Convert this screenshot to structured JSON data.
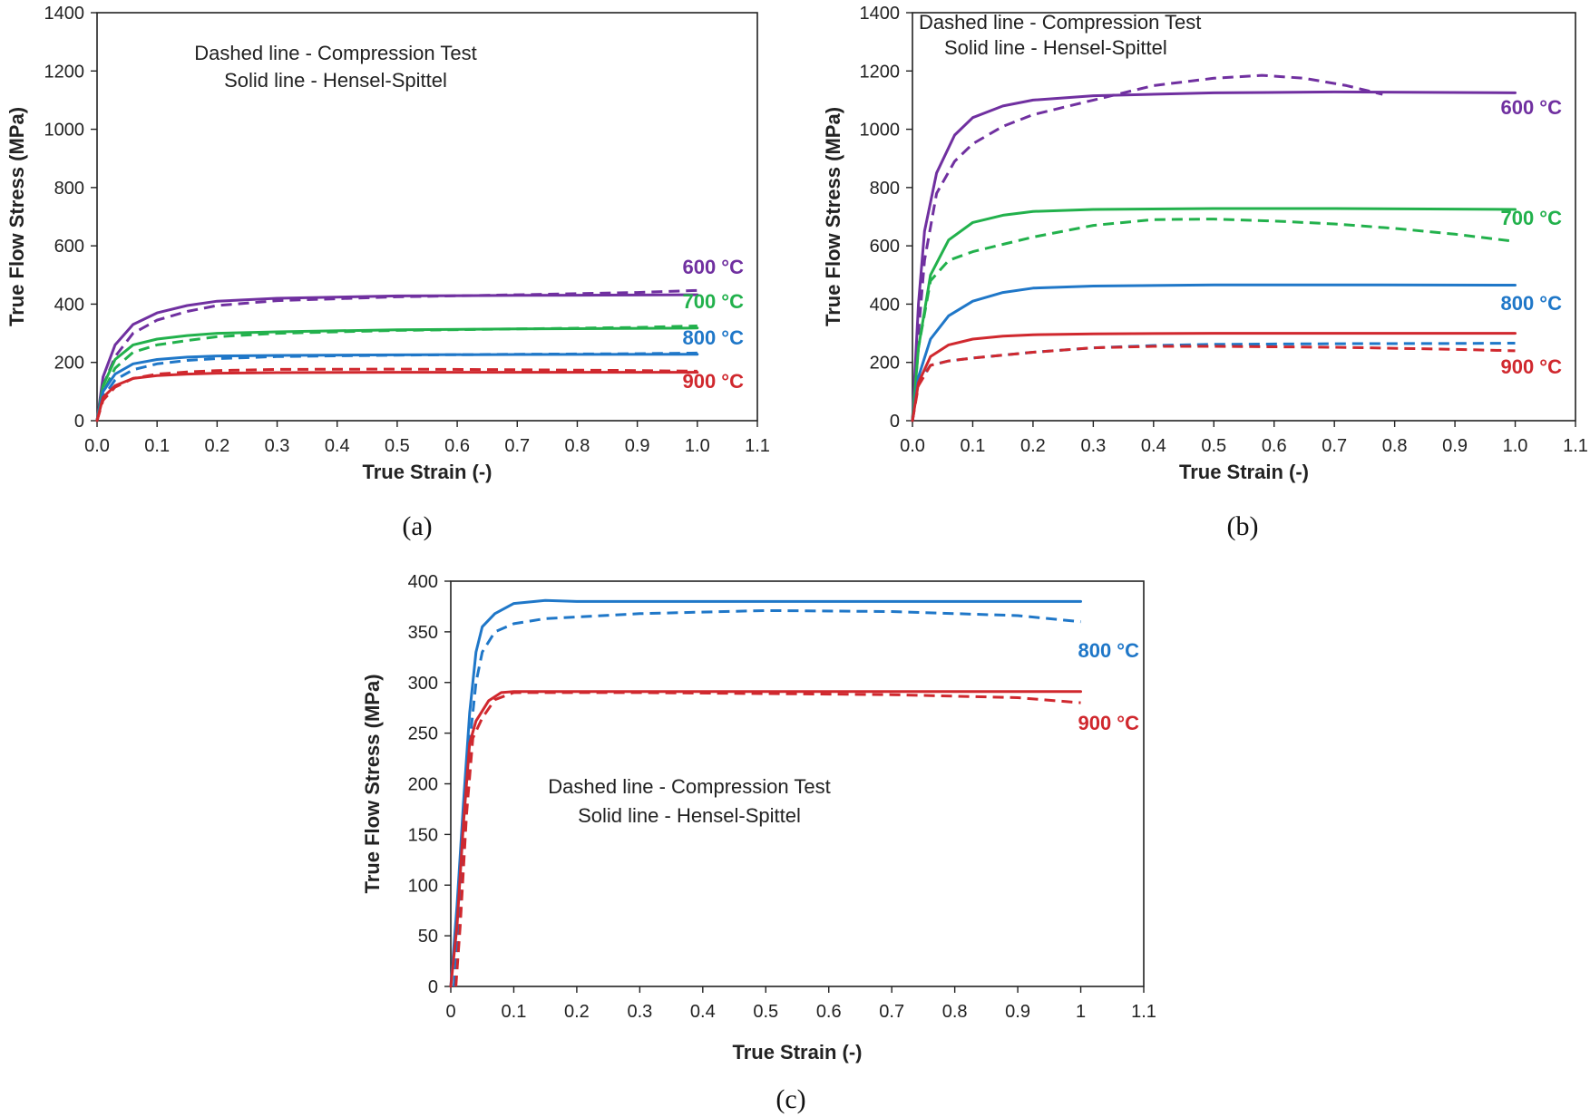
{
  "colors": {
    "600": "#7030A0",
    "700": "#22B14C",
    "800": "#1F77C8",
    "900": "#D0282E",
    "axis": "#222222"
  },
  "chart_data": [
    {
      "id": "a",
      "type": "line",
      "caption": "(a)",
      "xlabel": "True Strain (-)",
      "ylabel": "True Flow Stress (MPa)",
      "xlim": [
        0,
        1.1
      ],
      "ylim": [
        0,
        1400
      ],
      "xticks": [
        "0.0",
        "0.1",
        "0.2",
        "0.3",
        "0.4",
        "0.5",
        "0.6",
        "0.7",
        "0.8",
        "0.9",
        "1.0",
        "1.1"
      ],
      "yticks": [
        "0",
        "200",
        "400",
        "600",
        "800",
        "1000",
        "1200",
        "1400"
      ],
      "legend_notes": [
        "Dashed line - Compression Test",
        "Solid line - Hensel-Spittel"
      ],
      "series": [
        {
          "label": "600 °C",
          "temp": "600",
          "solid": [
            [
              0,
              0
            ],
            [
              0.01,
              150
            ],
            [
              0.03,
              260
            ],
            [
              0.06,
              330
            ],
            [
              0.1,
              370
            ],
            [
              0.15,
              395
            ],
            [
              0.2,
              410
            ],
            [
              0.3,
              420
            ],
            [
              0.5,
              428
            ],
            [
              0.7,
              430
            ],
            [
              1.0,
              432
            ]
          ],
          "dashed": [
            [
              0,
              0
            ],
            [
              0.01,
              120
            ],
            [
              0.03,
              220
            ],
            [
              0.06,
              300
            ],
            [
              0.1,
              345
            ],
            [
              0.15,
              375
            ],
            [
              0.2,
              395
            ],
            [
              0.3,
              412
            ],
            [
              0.5,
              425
            ],
            [
              0.7,
              432
            ],
            [
              0.9,
              440
            ],
            [
              1.0,
              447
            ]
          ]
        },
        {
          "label": "700 °C",
          "temp": "700",
          "solid": [
            [
              0,
              0
            ],
            [
              0.01,
              120
            ],
            [
              0.03,
              210
            ],
            [
              0.06,
              260
            ],
            [
              0.1,
              280
            ],
            [
              0.15,
              292
            ],
            [
              0.2,
              300
            ],
            [
              0.3,
              305
            ],
            [
              0.5,
              312
            ],
            [
              0.7,
              315
            ],
            [
              1.0,
              318
            ]
          ],
          "dashed": [
            [
              0,
              0
            ],
            [
              0.01,
              100
            ],
            [
              0.03,
              180
            ],
            [
              0.06,
              235
            ],
            [
              0.1,
              260
            ],
            [
              0.15,
              275
            ],
            [
              0.2,
              288
            ],
            [
              0.3,
              300
            ],
            [
              0.5,
              310
            ],
            [
              0.7,
              315
            ],
            [
              0.9,
              320
            ],
            [
              1.0,
              325
            ]
          ]
        },
        {
          "label": "800 °C",
          "temp": "800",
          "solid": [
            [
              0,
              0
            ],
            [
              0.01,
              100
            ],
            [
              0.03,
              160
            ],
            [
              0.06,
              195
            ],
            [
              0.1,
              210
            ],
            [
              0.15,
              218
            ],
            [
              0.2,
              222
            ],
            [
              0.3,
              224
            ],
            [
              0.5,
              226
            ],
            [
              0.7,
              227
            ],
            [
              1.0,
              228
            ]
          ],
          "dashed": [
            [
              0,
              0
            ],
            [
              0.01,
              80
            ],
            [
              0.03,
              140
            ],
            [
              0.06,
              175
            ],
            [
              0.1,
              195
            ],
            [
              0.15,
              207
            ],
            [
              0.2,
              213
            ],
            [
              0.3,
              220
            ],
            [
              0.5,
              225
            ],
            [
              0.7,
              228
            ],
            [
              0.9,
              230
            ],
            [
              1.0,
              232
            ]
          ]
        },
        {
          "label": "900 °C",
          "temp": "900",
          "solid": [
            [
              0,
              0
            ],
            [
              0.01,
              80
            ],
            [
              0.03,
              120
            ],
            [
              0.06,
              145
            ],
            [
              0.1,
              155
            ],
            [
              0.15,
              160
            ],
            [
              0.2,
              163
            ],
            [
              0.3,
              165
            ],
            [
              0.5,
              166
            ],
            [
              0.7,
              166
            ],
            [
              1.0,
              166
            ]
          ],
          "dashed": [
            [
              0,
              0
            ],
            [
              0.01,
              70
            ],
            [
              0.03,
              115
            ],
            [
              0.06,
              145
            ],
            [
              0.1,
              160
            ],
            [
              0.15,
              167
            ],
            [
              0.2,
              172
            ],
            [
              0.3,
              176
            ],
            [
              0.5,
              177
            ],
            [
              0.7,
              175
            ],
            [
              0.9,
              172
            ],
            [
              1.0,
              170
            ]
          ]
        }
      ]
    },
    {
      "id": "b",
      "type": "line",
      "caption": "(b)",
      "xlabel": "True Strain (-)",
      "ylabel": "True Flow Stress (MPa)",
      "xlim": [
        0,
        1.1
      ],
      "ylim": [
        0,
        1400
      ],
      "xticks": [
        "0.0",
        "0.1",
        "0.2",
        "0.3",
        "0.4",
        "0.5",
        "0.6",
        "0.7",
        "0.8",
        "0.9",
        "1.0",
        "1.1"
      ],
      "yticks": [
        "0",
        "200",
        "400",
        "600",
        "800",
        "1000",
        "1200",
        "1400"
      ],
      "legend_notes": [
        "Dashed line - Compression Test",
        "Solid line - Hensel-Spittel"
      ],
      "series": [
        {
          "label": "600 °C",
          "temp": "600",
          "solid": [
            [
              0,
              0
            ],
            [
              0.01,
              400
            ],
            [
              0.02,
              650
            ],
            [
              0.04,
              850
            ],
            [
              0.07,
              980
            ],
            [
              0.1,
              1040
            ],
            [
              0.15,
              1080
            ],
            [
              0.2,
              1100
            ],
            [
              0.3,
              1115
            ],
            [
              0.5,
              1125
            ],
            [
              0.7,
              1128
            ],
            [
              1.0,
              1125
            ]
          ],
          "dashed": [
            [
              0,
              0
            ],
            [
              0.01,
              300
            ],
            [
              0.02,
              550
            ],
            [
              0.04,
              780
            ],
            [
              0.07,
              890
            ],
            [
              0.1,
              950
            ],
            [
              0.15,
              1010
            ],
            [
              0.2,
              1050
            ],
            [
              0.3,
              1100
            ],
            [
              0.4,
              1150
            ],
            [
              0.5,
              1175
            ],
            [
              0.58,
              1185
            ],
            [
              0.65,
              1175
            ],
            [
              0.72,
              1150
            ],
            [
              0.78,
              1120
            ]
          ]
        },
        {
          "label": "700 °C",
          "temp": "700",
          "solid": [
            [
              0,
              0
            ],
            [
              0.01,
              250
            ],
            [
              0.03,
              500
            ],
            [
              0.06,
              620
            ],
            [
              0.1,
              680
            ],
            [
              0.15,
              705
            ],
            [
              0.2,
              718
            ],
            [
              0.3,
              725
            ],
            [
              0.5,
              728
            ],
            [
              0.7,
              728
            ],
            [
              1.0,
              725
            ]
          ],
          "dashed": [
            [
              0,
              0
            ],
            [
              0.01,
              250
            ],
            [
              0.03,
              480
            ],
            [
              0.06,
              550
            ],
            [
              0.1,
              580
            ],
            [
              0.15,
              605
            ],
            [
              0.2,
              630
            ],
            [
              0.3,
              670
            ],
            [
              0.4,
              690
            ],
            [
              0.5,
              692
            ],
            [
              0.6,
              685
            ],
            [
              0.7,
              675
            ],
            [
              0.8,
              660
            ],
            [
              0.9,
              640
            ],
            [
              1.0,
              615
            ]
          ]
        },
        {
          "label": "800 °C",
          "temp": "800",
          "solid": [
            [
              0,
              0
            ],
            [
              0.01,
              150
            ],
            [
              0.03,
              280
            ],
            [
              0.06,
              360
            ],
            [
              0.1,
              410
            ],
            [
              0.15,
              440
            ],
            [
              0.2,
              455
            ],
            [
              0.3,
              462
            ],
            [
              0.5,
              466
            ],
            [
              0.7,
              466
            ],
            [
              1.0,
              465
            ]
          ],
          "dashed": [
            [
              0,
              0
            ],
            [
              0.01,
              130
            ],
            [
              0.03,
              190
            ],
            [
              0.06,
              205
            ],
            [
              0.1,
              215
            ],
            [
              0.2,
              235
            ],
            [
              0.3,
              250
            ],
            [
              0.4,
              258
            ],
            [
              0.5,
              262
            ],
            [
              0.7,
              264
            ],
            [
              0.9,
              265
            ],
            [
              1.0,
              266
            ]
          ]
        },
        {
          "label": "900 °C",
          "temp": "900",
          "solid": [
            [
              0,
              0
            ],
            [
              0.01,
              130
            ],
            [
              0.03,
              220
            ],
            [
              0.06,
              260
            ],
            [
              0.1,
              280
            ],
            [
              0.15,
              290
            ],
            [
              0.2,
              295
            ],
            [
              0.3,
              298
            ],
            [
              0.5,
              300
            ],
            [
              0.7,
              300
            ],
            [
              1.0,
              300
            ]
          ],
          "dashed": [
            [
              0,
              0
            ],
            [
              0.01,
              120
            ],
            [
              0.03,
              190
            ],
            [
              0.06,
              205
            ],
            [
              0.1,
              215
            ],
            [
              0.2,
              235
            ],
            [
              0.3,
              250
            ],
            [
              0.4,
              255
            ],
            [
              0.5,
              255
            ],
            [
              0.7,
              252
            ],
            [
              0.9,
              245
            ],
            [
              1.0,
              240
            ]
          ]
        }
      ]
    },
    {
      "id": "c",
      "type": "line",
      "caption": "(c)",
      "xlabel": "True Strain (-)",
      "ylabel": "True Flow Stress (MPa)",
      "xlim": [
        0,
        1.1
      ],
      "ylim": [
        0,
        400
      ],
      "xticks": [
        "0",
        "0.1",
        "0.2",
        "0.3",
        "0.4",
        "0.5",
        "0.6",
        "0.7",
        "0.8",
        "0.9",
        "1",
        "1.1"
      ],
      "yticks": [
        "0",
        "50",
        "100",
        "150",
        "200",
        "250",
        "300",
        "350",
        "400"
      ],
      "legend_notes": [
        "Dashed line - Compression Test",
        "Solid line - Hensel-Spittel"
      ],
      "series": [
        {
          "label": "800 °C",
          "temp": "800",
          "solid": [
            [
              0,
              0
            ],
            [
              0.01,
              80
            ],
            [
              0.02,
              180
            ],
            [
              0.03,
              270
            ],
            [
              0.04,
              330
            ],
            [
              0.05,
              355
            ],
            [
              0.07,
              368
            ],
            [
              0.1,
              378
            ],
            [
              0.15,
              381
            ],
            [
              0.2,
              380
            ],
            [
              0.5,
              380
            ],
            [
              0.8,
              380
            ],
            [
              1.0,
              380
            ]
          ],
          "dashed": [
            [
              0.005,
              0
            ],
            [
              0.01,
              40
            ],
            [
              0.02,
              140
            ],
            [
              0.03,
              240
            ],
            [
              0.04,
              300
            ],
            [
              0.05,
              330
            ],
            [
              0.07,
              350
            ],
            [
              0.1,
              358
            ],
            [
              0.15,
              363
            ],
            [
              0.3,
              368
            ],
            [
              0.5,
              371
            ],
            [
              0.7,
              370
            ],
            [
              0.9,
              366
            ],
            [
              1.0,
              360
            ]
          ]
        },
        {
          "label": "900 °C",
          "temp": "900",
          "solid": [
            [
              0,
              0
            ],
            [
              0.01,
              60
            ],
            [
              0.02,
              160
            ],
            [
              0.03,
              240
            ],
            [
              0.04,
              262
            ],
            [
              0.06,
              282
            ],
            [
              0.08,
              290
            ],
            [
              0.1,
              291
            ],
            [
              0.3,
              291
            ],
            [
              0.5,
              291
            ],
            [
              0.8,
              291
            ],
            [
              1.0,
              291
            ]
          ],
          "dashed": [
            [
              0.008,
              0
            ],
            [
              0.015,
              60
            ],
            [
              0.025,
              170
            ],
            [
              0.035,
              245
            ],
            [
              0.05,
              265
            ],
            [
              0.07,
              283
            ],
            [
              0.1,
              290
            ],
            [
              0.3,
              290
            ],
            [
              0.5,
              289
            ],
            [
              0.7,
              288
            ],
            [
              0.9,
              285
            ],
            [
              1.0,
              280
            ]
          ]
        }
      ]
    }
  ]
}
